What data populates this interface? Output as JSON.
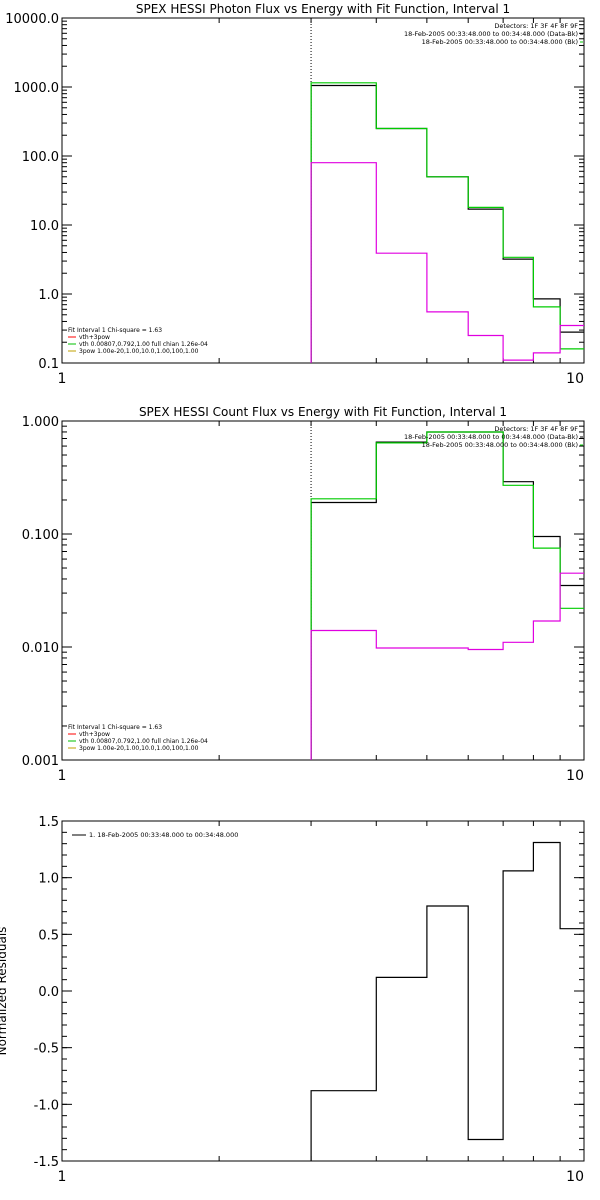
{
  "chart_data": [
    {
      "type": "line",
      "title": "SPEX HESSI Photon Flux vs Energy with Fit Function, Interval 1",
      "xlabel": "",
      "ylabel": "",
      "x_scale": "log",
      "y_scale": "log",
      "xlim": [
        1,
        10
      ],
      "ylim": [
        0.1,
        10000
      ],
      "x_ticks": [
        {
          "v": 1,
          "label": "1"
        },
        {
          "v": 10,
          "label": "10"
        }
      ],
      "y_ticks": [
        {
          "v": 0.1,
          "label": "0.1"
        },
        {
          "v": 1,
          "label": "1.0"
        },
        {
          "v": 10,
          "label": "10.0"
        },
        {
          "v": 100,
          "label": "100.0"
        },
        {
          "v": 1000,
          "label": "1000.0"
        },
        {
          "v": 10000,
          "label": "10000.0"
        }
      ],
      "vline": 3.0,
      "legend_top": [
        "Detectors: 1F 3F 4F 8F 9F",
        "18-Feb-2005 00:33:48.000 to 00:34:48.000 (Data-Bk)",
        "18-Feb-2005 00:33:48.000 to 00:34:48.000 (Bk)"
      ],
      "legend_bottom": [
        "Fit Interval 1    Chi-square = 1.63",
        "vth+3pow",
        "vth 0.00807,0.792,1.00   full chian 1.26e-04",
        "3pow 1.00e-20,1.00,10.0,1.00,100,1.00"
      ],
      "legend_bottom_colors": [
        "#000000",
        "#ff0000",
        "#00c000",
        "#c0a000"
      ],
      "series": [
        {
          "color": "#000000",
          "edges": [
            3.0,
            4.0,
            5.0,
            6.0,
            7.0,
            8.0,
            9.0,
            10.0
          ],
          "values": [
            1050,
            250,
            50,
            17,
            3.2,
            0.85,
            0.28
          ]
        },
        {
          "color": "#00cc00",
          "edges": [
            3.0,
            4.0,
            5.0,
            6.0,
            7.0,
            8.0,
            9.0,
            10.0
          ],
          "values": [
            1150,
            250,
            50,
            18,
            3.4,
            0.65,
            0.16
          ]
        },
        {
          "color": "#e000e0",
          "edges": [
            3.0,
            4.0,
            5.0,
            6.0,
            7.0,
            8.0,
            9.0,
            10.0
          ],
          "values": [
            80,
            3.9,
            0.55,
            0.25,
            0.11,
            0.14,
            0.35
          ]
        }
      ]
    },
    {
      "type": "line",
      "title": "SPEX HESSI Count Flux vs Energy with Fit Function, Interval 1",
      "xlabel": "",
      "ylabel": "",
      "x_scale": "log",
      "y_scale": "log",
      "xlim": [
        1,
        10
      ],
      "ylim": [
        0.001,
        1.0
      ],
      "x_ticks": [
        {
          "v": 1,
          "label": "1"
        },
        {
          "v": 10,
          "label": "10"
        }
      ],
      "y_ticks": [
        {
          "v": 0.001,
          "label": "0.001"
        },
        {
          "v": 0.01,
          "label": "0.010"
        },
        {
          "v": 0.1,
          "label": "0.100"
        },
        {
          "v": 1,
          "label": "1.000"
        }
      ],
      "vline": 3.0,
      "legend_top": [
        "Detectors: 1F 3F 4F 8F 9F",
        "18-Feb-2005 00:33:48.000 to 00:34:48.000 (Data-Bk)",
        "18-Feb-2005 00:33:48.000 to 00:34:48.000 (Bk)"
      ],
      "legend_bottom": [
        "Fit Interval 1    Chi-square = 1.63",
        "vth+3pow",
        "vth 0.00807,0.792,1.00   full chian 1.26e-04",
        "3pow 1.00e-20,1.00,10.0,1.00,100,1.00"
      ],
      "legend_bottom_colors": [
        "#000000",
        "#ff0000",
        "#00c000",
        "#c0a000"
      ],
      "series": [
        {
          "color": "#000000",
          "edges": [
            3.0,
            4.0,
            5.0,
            6.0,
            7.0,
            8.0,
            9.0,
            10.0
          ],
          "values": [
            0.19,
            0.65,
            0.8,
            0.8,
            0.29,
            0.095,
            0.035
          ]
        },
        {
          "color": "#00cc00",
          "edges": [
            3.0,
            4.0,
            5.0,
            6.0,
            7.0,
            8.0,
            9.0,
            10.0
          ],
          "values": [
            0.205,
            0.64,
            0.8,
            0.8,
            0.27,
            0.075,
            0.022
          ]
        },
        {
          "color": "#e000e0",
          "edges": [
            3.0,
            4.0,
            5.0,
            6.0,
            7.0,
            8.0,
            9.0,
            10.0
          ],
          "values": [
            0.014,
            0.0098,
            0.0098,
            0.0095,
            0.011,
            0.017,
            0.045
          ]
        }
      ]
    },
    {
      "type": "line",
      "title": "",
      "xlabel": "",
      "ylabel": "Normalized Residuals",
      "x_scale": "log",
      "y_scale": "linear",
      "xlim": [
        1,
        10
      ],
      "ylim": [
        -1.5,
        1.5
      ],
      "x_ticks": [
        {
          "v": 1,
          "label": "1"
        },
        {
          "v": 10,
          "label": "10"
        }
      ],
      "y_ticks": [
        {
          "v": -1.5,
          "label": "-1.5"
        },
        {
          "v": -1.0,
          "label": "-1.0"
        },
        {
          "v": -0.5,
          "label": "-0.5"
        },
        {
          "v": 0.0,
          "label": "0.0"
        },
        {
          "v": 0.5,
          "label": "0.5"
        },
        {
          "v": 1.0,
          "label": "1.0"
        },
        {
          "v": 1.5,
          "label": "1.5"
        }
      ],
      "vline": null,
      "legend_top": [
        "1. 18-Feb-2005 00:33:48.000 to 00:34:48.000"
      ],
      "series": [
        {
          "color": "#000000",
          "edges": [
            3.0,
            4.0,
            5.0,
            6.0,
            7.0,
            8.0,
            9.0,
            10.0
          ],
          "values": [
            -0.88,
            0.12,
            0.75,
            -1.31,
            1.06,
            1.31,
            0.55
          ]
        }
      ]
    }
  ]
}
